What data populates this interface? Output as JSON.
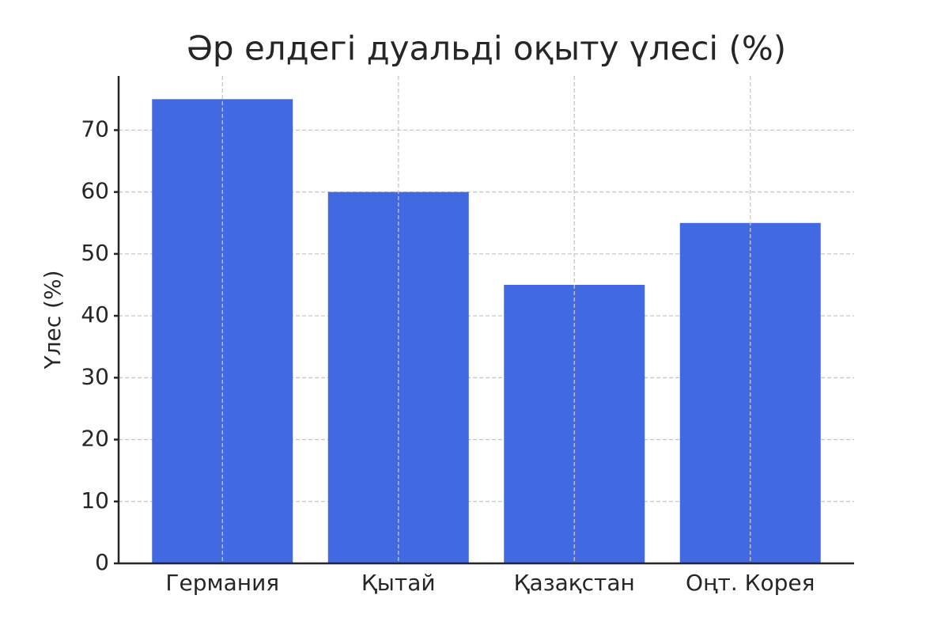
{
  "chart_data": {
    "type": "bar",
    "title": "Әр елдегі дуальді оқыту үлесі (%)",
    "y_label": "Үлес (%)",
    "categories": [
      "Германия",
      "Қытай",
      "Қазақстан",
      "Оңт. Корея"
    ],
    "values": [
      75,
      60,
      45,
      55
    ],
    "color": "#4169e1",
    "ylim": [
      0,
      78.75
    ],
    "yticks": [
      0,
      10,
      20,
      30,
      40,
      50,
      60,
      70
    ],
    "grid": true
  }
}
